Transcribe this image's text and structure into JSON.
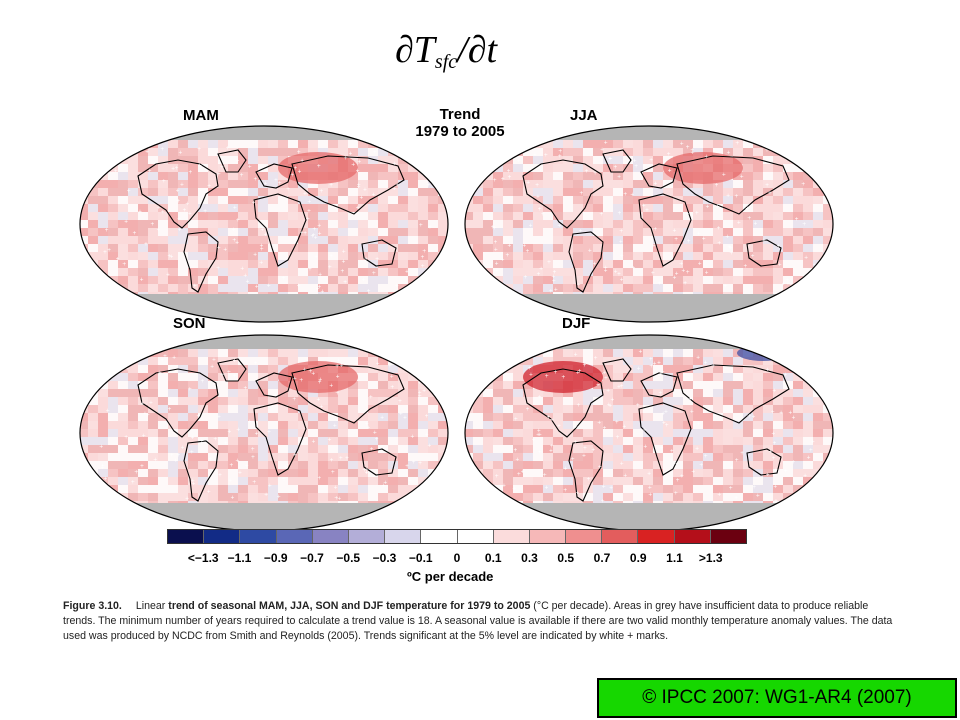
{
  "title": {
    "main": "∂T",
    "sub": "sfc",
    "tail": "/∂t"
  },
  "panels": {
    "mam": "MAM",
    "jja": "JJA",
    "son": "SON",
    "djf": "DJF",
    "trend_line1": "Trend",
    "trend_line2": "1979 to 2005"
  },
  "colorbar": {
    "colors": [
      "#0a0f4e",
      "#122b86",
      "#2e4aa3",
      "#5a67b6",
      "#8883c2",
      "#b3aed8",
      "#d8d6ec",
      "#ffffff",
      "#ffffff",
      "#fbdcdc",
      "#f6b8b8",
      "#ef8f8f",
      "#e35d5d",
      "#d92222",
      "#b40f1a",
      "#6b0010"
    ],
    "ticks": [
      "<−1.3",
      "−1.1",
      "−0.9",
      "−0.7",
      "−0.5",
      "−0.3",
      "−0.1",
      "0",
      "0.1",
      "0.3",
      "0.5",
      "0.7",
      "0.9",
      "1.1",
      ">1.3"
    ],
    "units": "ºC per decade"
  },
  "caption": {
    "figure": "Figure 3.10.",
    "text_a": "Linear ",
    "bold_a": "trend of seasonal MAM, JJA, SON and DJF temperature for 1979 to 2005",
    "text_b": " (°C per decade). Areas in grey have insufficient data to produce reliable trends. The minimum number of years required to calculate a trend value is 18. A seasonal value is available if there are two valid monthly temperature anomaly values. The data used was produced by NCDC from Smith and Reynolds (2005). Trends significant at the 5% level are indicated by white + marks."
  },
  "credit": "© IPCC 2007: WG1-AR4 (2007)"
}
